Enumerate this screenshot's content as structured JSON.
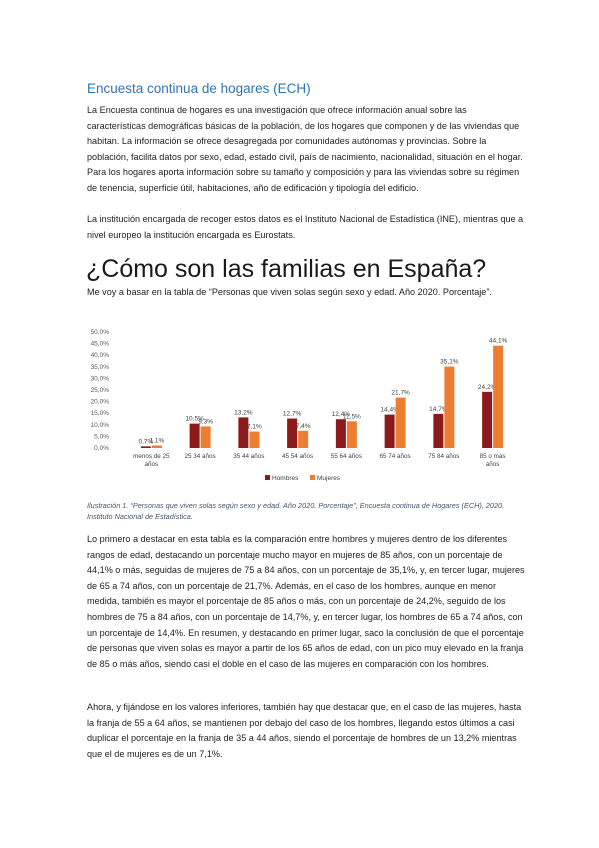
{
  "section_heading": "Encuesta continua de hogares (ECH)",
  "intro_paragraph": "La Encuesta continua de hogares es una investigación que ofrece información anual sobre las características demográficas básicas de la población, de los hogares que componen y de las viviendas que habitan. La información se ofrece desagregada por comunidades autónomas y provincias. Sobre la población, facilita datos por sexo, edad, estado civil, país de nacimiento, nacionalidad, situación en el hogar. Para los hogares aporta información sobre su tamaño y composición y para las viviendas sobre su régimen de tenencia, superficie útil, habitaciones, año de edificación y tipología del edificio.",
  "institution_paragraph": "La institución encargada de recoger estos datos es el Instituto Nacional de Estadística (INE), mientras que a nivel europeo la institución encargada es Eurostats.",
  "main_heading": "¿Cómo son las familias en España?",
  "chart_intro": "Me voy a basar en la tabla de “Personas que viven solas según sexo y edad. Año 2020. Porcentaje”.",
  "caption": "Ilustración 1. “Personas que viven solas según sexo y edad. Año 2020. Porcentaje”, Encuesta continua de Hogares (ECH), 2020. Instituto Nacional de Estadística.",
  "analysis_paragraph_1": "Lo primero a destacar en esta tabla es la comparación entre hombres y mujeres dentro de los diferentes rangos de edad, destacando un porcentaje mucho mayor en mujeres de 85 años, con un porcentaje de 44,1% o más, seguidas de mujeres de 75 a 84 años, con un porcentaje de 35,1%, y, en tercer lugar, mujeres de 65 a 74 años, con un porcentaje de 21,7%. Además, en el caso de los hombres, aunque en menor medida, también es mayor el porcentaje de 85 años o más, con un porcentaje de 24,2%, seguido de los hombres de 75 a 84 años, con un porcentaje de 14,7%, y, en tercer lugar, los hombres de 65 a 74 años, con un porcentaje de 14,4%. En resumen, y destacando en primer lugar, saco la conclusión de que el porcentaje de personas que viven solas es mayor a partir de los 65 años de edad, con un pico muy elevado en la franja de 85 o más años, siendo casi el doble en el caso de las mujeres en comparación con los hombres.",
  "analysis_paragraph_2": "Ahora, y fijándose en los valores inferiores, también hay que destacar que, en el caso de las mujeres, hasta la franja de 55 a 64 años, se mantienen por debajo del caso de los hombres, llegando estos últimos a casi duplicar el porcentaje en la franja de 35 a 44 años, siendo el porcentaje de hombres de un 13,2% mientras que el de mujeres es de un 7,1%.",
  "colors": {
    "hombres": "#8b1a1a",
    "mujeres": "#ed7d31",
    "heading": "#2e74b5"
  },
  "chart_data": {
    "type": "bar",
    "categories": [
      "menos de 25 años",
      "25 34 años",
      "35 44 años",
      "45 54 años",
      "55 64 años",
      "65 74 años",
      "75 84 años",
      "85 o más años"
    ],
    "series": [
      {
        "name": "Hombres",
        "values": [
          0.7,
          10.5,
          13.2,
          12.7,
          12.4,
          14.4,
          14.7,
          24.2
        ],
        "labels": [
          "0,7%",
          "10,5%",
          "13,2%",
          "12,7%",
          "12,4%",
          "14,4%",
          "14,7%",
          "24,2%"
        ]
      },
      {
        "name": "Mujeres",
        "values": [
          1.1,
          9.3,
          7.1,
          7.4,
          11.5,
          21.7,
          35.1,
          44.1
        ],
        "labels": [
          "1,1%",
          "9,3%",
          "7,1%",
          "7,4%",
          "11,5%",
          "21,7%",
          "35,1%",
          "44,1%"
        ]
      }
    ],
    "yticks": [
      "0,0%",
      "5,0%",
      "10,0%",
      "15,0%",
      "20,0%",
      "25,0%",
      "30,0%",
      "35,0%",
      "40,0%",
      "45,0%",
      "50,0%"
    ],
    "ylim": [
      0,
      50
    ],
    "grid": false,
    "legend": "bottom"
  }
}
